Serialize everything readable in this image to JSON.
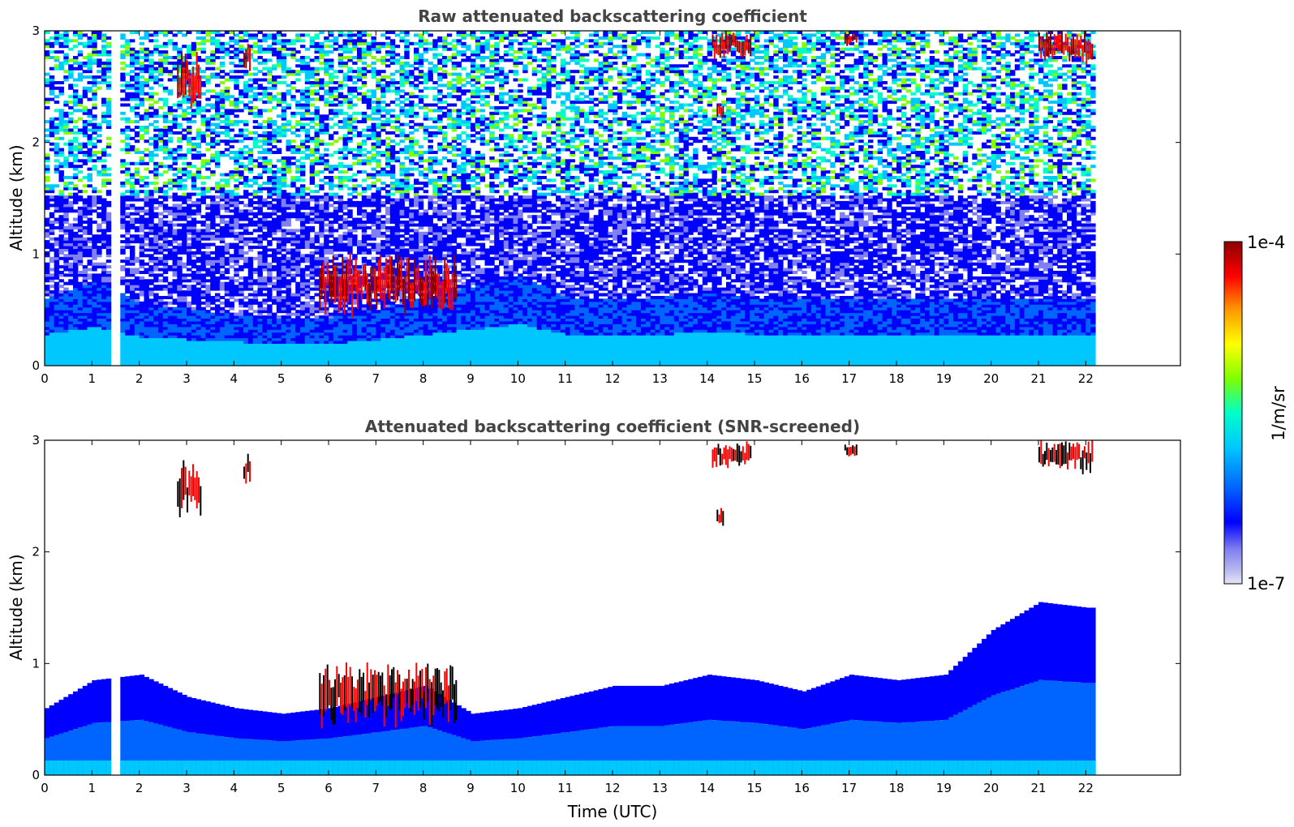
{
  "chart_data": [
    {
      "type": "heatmap",
      "title": "Raw attenuated backscattering coefficient",
      "xlabel": "",
      "ylabel": "Altitude (km)",
      "xlim": [
        0,
        24
      ],
      "ylim": [
        0,
        3
      ],
      "xticks": [
        "0",
        "1",
        "2",
        "3",
        "4",
        "5",
        "6",
        "7",
        "8",
        "9",
        "10",
        "11",
        "12",
        "13",
        "14",
        "15",
        "16",
        "17",
        "18",
        "19",
        "20",
        "21",
        "22"
      ],
      "yticks": [
        "0",
        "1",
        "2",
        "3"
      ],
      "data_time_range": [
        0,
        22.15
      ],
      "data_gap": [
        1.43,
        1.55
      ],
      "aerosol_top_km": [
        0.6,
        0.75,
        0.55,
        0.5,
        0.45,
        0.4,
        0.42,
        0.5,
        0.6,
        0.7,
        0.8,
        0.6,
        0.6,
        0.6,
        0.65,
        0.6,
        0.6,
        0.6,
        0.6,
        0.6,
        0.6,
        0.6,
        0.6
      ],
      "cloud_features": [
        {
          "t0": 2.8,
          "t1": 3.3,
          "z0": 2.3,
          "z1": 2.8
        },
        {
          "t0": 4.2,
          "t1": 4.35,
          "z0": 2.6,
          "z1": 2.9
        },
        {
          "t0": 5.8,
          "t1": 8.7,
          "z0": 0.45,
          "z1": 1.0
        },
        {
          "t0": 14.1,
          "t1": 14.9,
          "z0": 2.75,
          "z1": 3.0
        },
        {
          "t0": 14.2,
          "t1": 14.35,
          "z0": 2.2,
          "z1": 2.4
        },
        {
          "t0": 16.9,
          "t1": 17.15,
          "z0": 2.85,
          "z1": 3.0
        },
        {
          "t0": 21.0,
          "t1": 22.15,
          "z0": 2.7,
          "z1": 3.0
        }
      ],
      "colorscale": [
        "#e6e6f7",
        "#b8b8f0",
        "#8080f0",
        "#0000ff",
        "#0064ff",
        "#00c8ff",
        "#00ffc8",
        "#7fff00",
        "#ffff00",
        "#ff9900",
        "#ff0000",
        "#8b0000"
      ]
    },
    {
      "type": "heatmap",
      "title": "Attenuated backscattering coefficient (SNR-screened)",
      "xlabel": "Time (UTC)",
      "ylabel": "Altitude (km)",
      "xlim": [
        0,
        24
      ],
      "ylim": [
        0,
        3
      ],
      "xticks": [
        "0",
        "1",
        "2",
        "3",
        "4",
        "5",
        "6",
        "7",
        "8",
        "9",
        "10",
        "11",
        "12",
        "13",
        "14",
        "15",
        "16",
        "17",
        "18",
        "19",
        "20",
        "21",
        "22"
      ],
      "yticks": [
        "0",
        "1",
        "2",
        "3"
      ],
      "data_time_range": [
        0,
        22.15
      ],
      "data_gap": [
        1.43,
        1.55
      ],
      "screened_top_km": [
        0.6,
        0.85,
        0.9,
        0.7,
        0.6,
        0.55,
        0.6,
        0.7,
        0.8,
        0.55,
        0.6,
        0.7,
        0.8,
        0.8,
        0.9,
        0.85,
        0.75,
        0.9,
        0.85,
        0.9,
        1.3,
        1.55,
        1.5
      ]
    }
  ],
  "colorbar": {
    "max_label": "1e-4",
    "min_label": "1e-7",
    "unit_label": "1/m/sr"
  }
}
